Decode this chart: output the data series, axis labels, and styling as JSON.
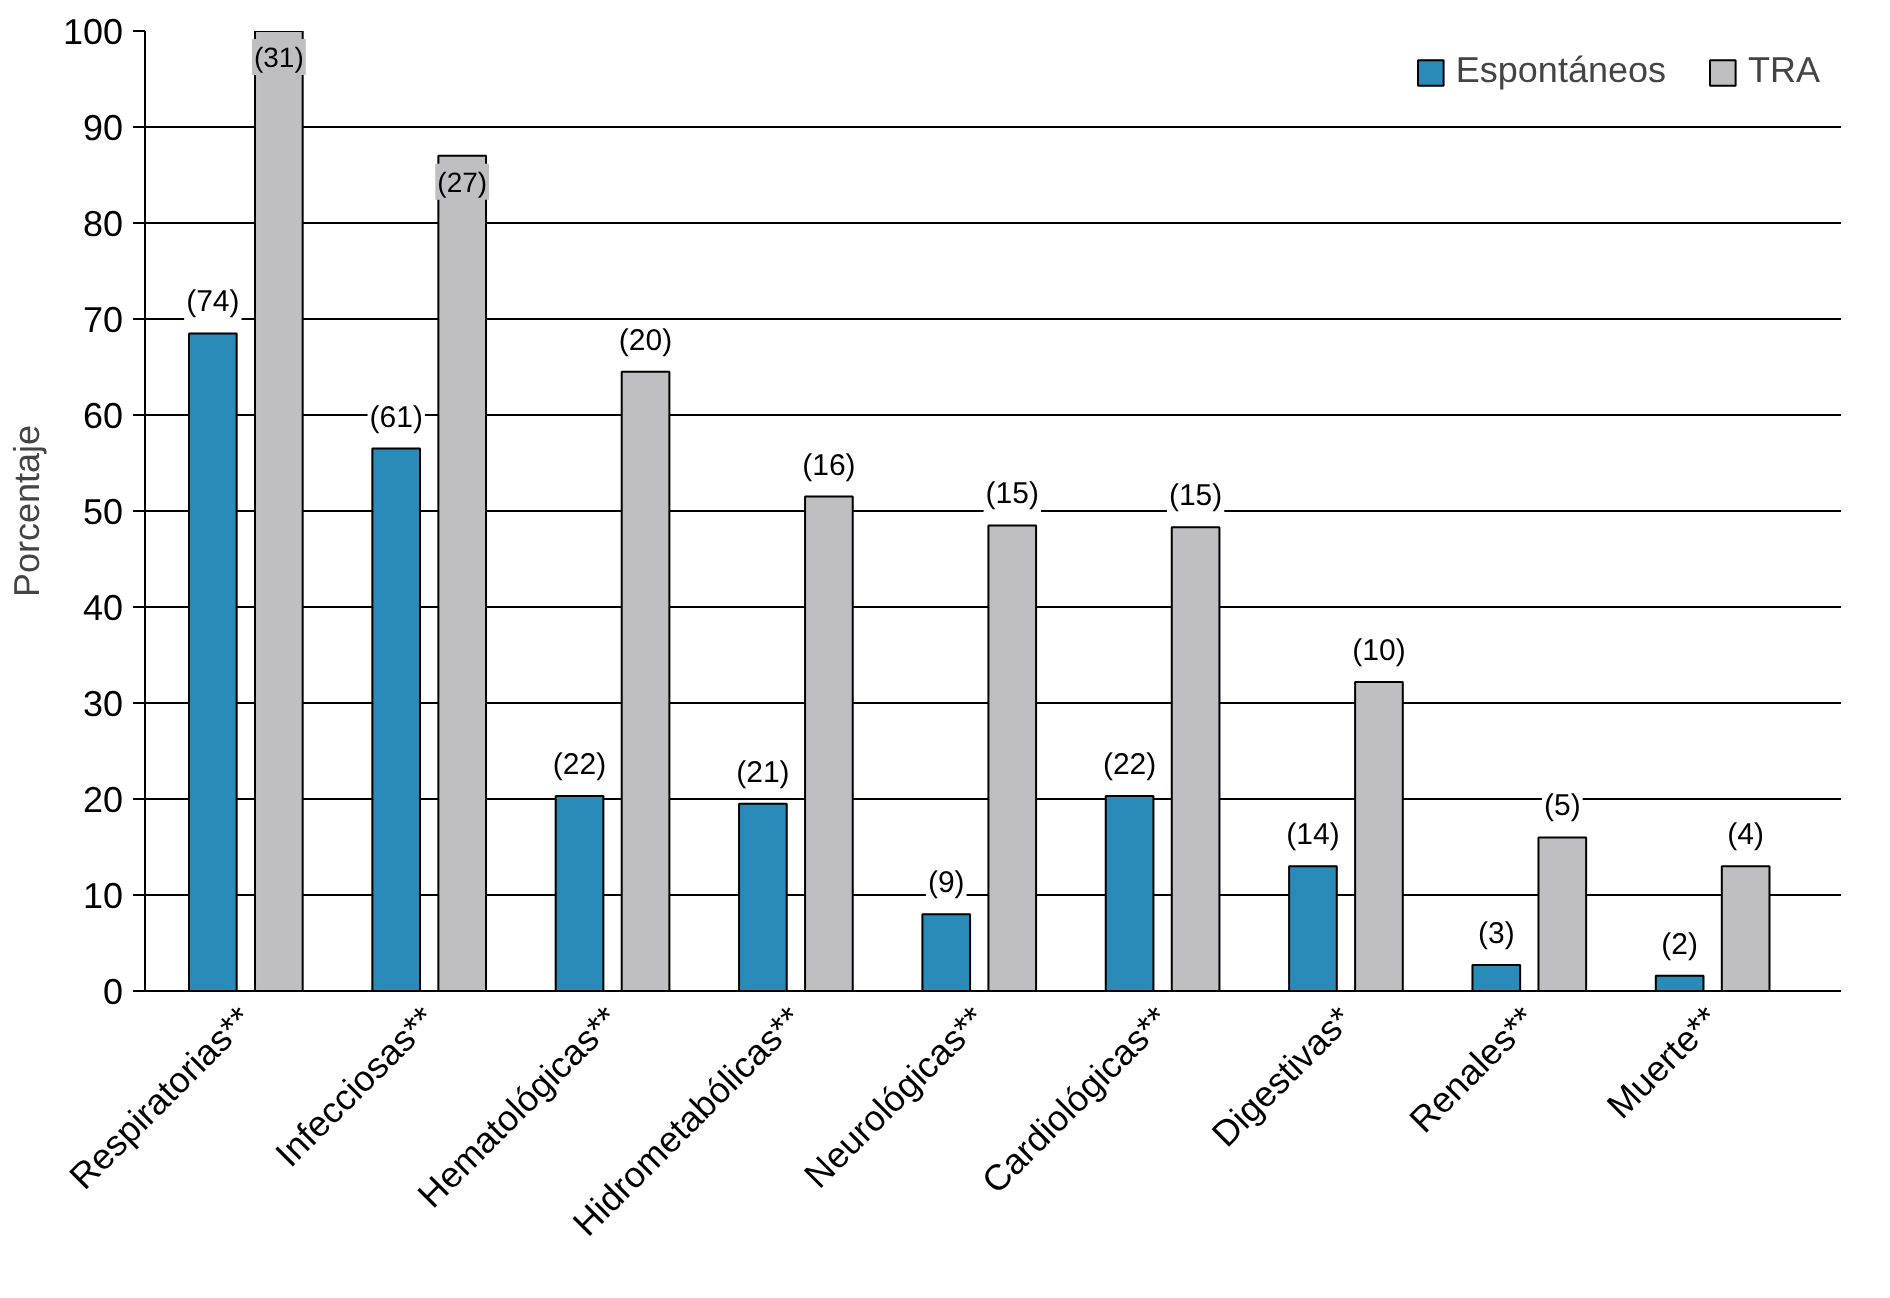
{
  "chart_data": {
    "type": "bar",
    "ylabel": "Porcentaje",
    "categories": [
      "Respiratorias**",
      "Infecciosas**",
      "Hematológicas**",
      "Hidrometabólicas**",
      "Neurológicas**",
      "Cardiológicas**",
      "Digestivas*",
      "Renales**",
      "Muerte**"
    ],
    "series": [
      {
        "name": "Espontáneos",
        "color": "#2a8ab8",
        "values": [
          68.5,
          56.5,
          20.3,
          19.5,
          8,
          20.3,
          13,
          2.7,
          1.6
        ]
      },
      {
        "name": "TRA",
        "color": "#bfbfc3",
        "values": [
          100,
          87,
          64.5,
          51.5,
          48.5,
          48.3,
          32.2,
          16,
          13
        ]
      }
    ],
    "annotations": [
      {
        "text": "(74)",
        "x": "Respiratorias**",
        "y": 68.5
      },
      {
        "text": "(61)",
        "x": "Infecciosas**",
        "y": 56.5
      },
      {
        "text": "(22)",
        "x": "Hematológicas**",
        "y": 20.3
      },
      {
        "text": "(21)",
        "x": "Hidrometabólicas**",
        "y": 19.5
      },
      {
        "text": "(9)",
        "x": "Neurológicas**",
        "y": 8
      },
      {
        "text": "(22)",
        "x": "Cardiológicas**",
        "y": 20.3
      },
      {
        "text": "(14)",
        "x": "Digestivas*",
        "y": 13
      },
      {
        "text": "(3)",
        "x": "Renales**",
        "y": 2.7
      },
      {
        "text": "(2)",
        "x": "Muerte**",
        "y": 1.6
      },
      {
        "text": "(31)",
        "x": "Respiratorias**",
        "y": 100
      },
      {
        "text": "(27)",
        "x": "Infecciosas**",
        "y": 87
      },
      {
        "text": "(20)",
        "x": "Hematológicas**",
        "y": 64.5
      },
      {
        "text": "(16)",
        "x": "Hidrometabólicas**",
        "y": 51.5
      },
      {
        "text": "(15)",
        "x": "Neurológicas**",
        "y": 48.5
      },
      {
        "text": "(15)",
        "x": "Cardiológicas**",
        "y": 48.3
      },
      {
        "text": "(10)",
        "x": "Digestivas*",
        "y": 32.2
      },
      {
        "text": "(5)",
        "x": "Renales**",
        "y": 16
      },
      {
        "text": "(4)",
        "x": "Muerte**",
        "y": 13
      }
    ],
    "ylim": [
      0,
      100
    ],
    "yticks": [
      0,
      10,
      20,
      30,
      40,
      50,
      60,
      70,
      80,
      90,
      100
    ],
    "grid": "y",
    "legend": "top right"
  }
}
